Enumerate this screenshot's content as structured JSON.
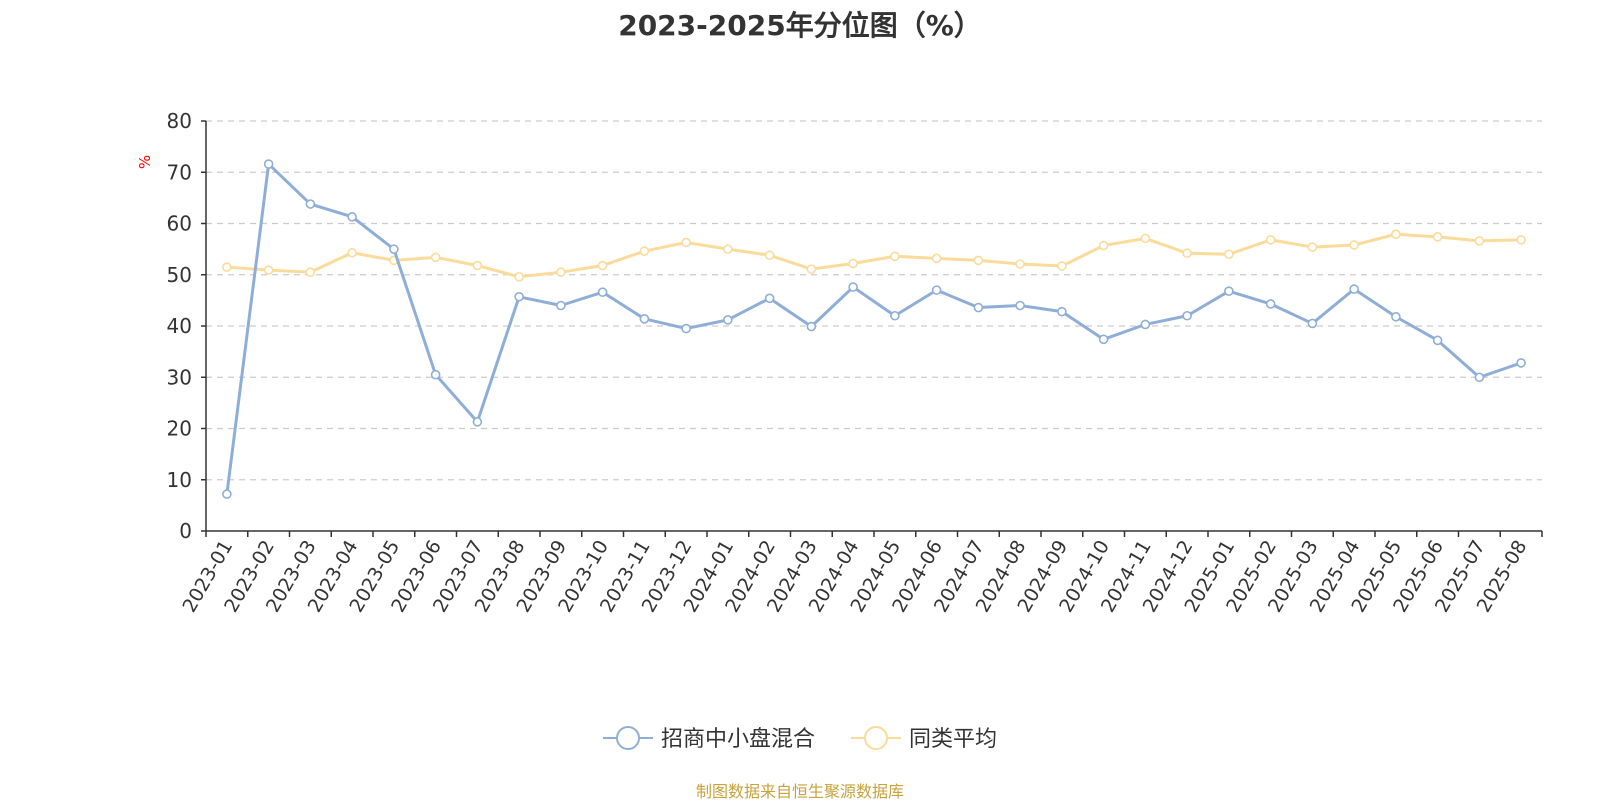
{
  "title": "2023-2025年分位图（%）",
  "source": "制图数据来自恒生聚源数据库",
  "colors": {
    "series1": "#8eaed8",
    "series2": "#fbdb9a",
    "ylabel": "#ff0000",
    "axis": "#333333",
    "grid": "#cccccc"
  },
  "chart_data": {
    "type": "line",
    "title": "2023-2025年分位图（%）",
    "ylabel": "%",
    "ylim": [
      0,
      80
    ],
    "yticks": [
      0,
      10,
      20,
      30,
      40,
      50,
      60,
      70,
      80
    ],
    "grid": "horizontal-dashed",
    "legend_position": "bottom",
    "categories": [
      "2023-01",
      "2023-02",
      "2023-03",
      "2023-04",
      "2023-05",
      "2023-06",
      "2023-07",
      "2023-08",
      "2023-09",
      "2023-10",
      "2023-11",
      "2023-12",
      "2024-01",
      "2024-02",
      "2024-03",
      "2024-04",
      "2024-05",
      "2024-06",
      "2024-07",
      "2024-08",
      "2024-09",
      "2024-10",
      "2024-11",
      "2024-12",
      "2025-01",
      "2025-02",
      "2025-03",
      "2025-04",
      "2025-05",
      "2025-06",
      "2025-07",
      "2025-08"
    ],
    "series": [
      {
        "name": "招商中小盘混合",
        "values": [
          7.2,
          71.6,
          63.8,
          61.3,
          55.0,
          30.5,
          21.3,
          45.7,
          44.0,
          46.6,
          41.4,
          39.5,
          41.2,
          45.4,
          39.9,
          47.6,
          42.0,
          47.0,
          43.6,
          44.0,
          42.8,
          37.4,
          40.3,
          42.0,
          46.8,
          44.3,
          40.5,
          47.2,
          41.8,
          37.2,
          30.0,
          32.8
        ]
      },
      {
        "name": "同类平均",
        "values": [
          51.5,
          50.9,
          50.5,
          54.3,
          52.8,
          53.4,
          51.8,
          49.6,
          50.5,
          51.8,
          54.6,
          56.3,
          55.0,
          53.8,
          51.1,
          52.2,
          53.6,
          53.2,
          52.8,
          52.1,
          51.7,
          55.7,
          57.1,
          54.2,
          54.0,
          56.8,
          55.4,
          55.8,
          57.9,
          57.4,
          56.6,
          56.8
        ]
      }
    ]
  }
}
